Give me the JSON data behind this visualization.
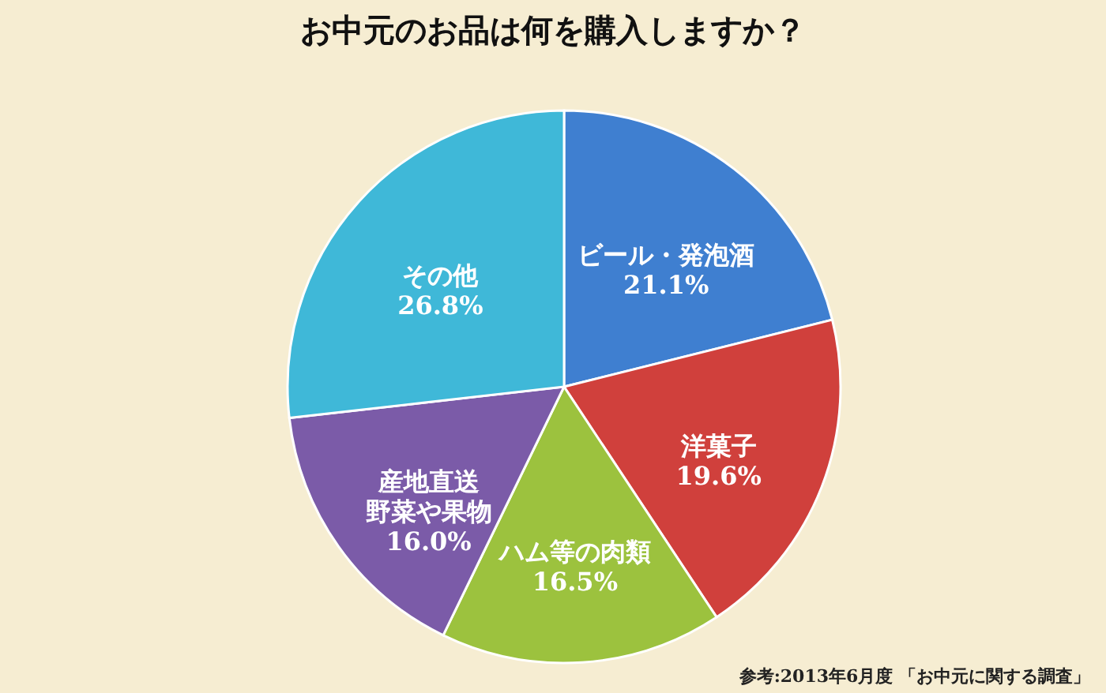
{
  "chart_data": {
    "type": "pie",
    "title": "お中元のお品は何を購入しますか？",
    "categories": [
      "ビール・発泡酒",
      "洋菓子",
      "ハム等の肉類",
      "産地直送野菜や果物",
      "その他"
    ],
    "values": [
      21.1,
      19.6,
      16.5,
      16.0,
      26.8
    ],
    "value_labels": [
      "21.1%",
      "19.6%",
      "16.5%",
      "16.0%",
      "26.8%"
    ],
    "colors": [
      "#3f7fd0",
      "#d0403c",
      "#9cc23e",
      "#7b5ba8",
      "#3fb8d8"
    ],
    "annotations": [
      "参考:2013年6月度 「お中元に関する調査」"
    ],
    "legend": false
  }
}
